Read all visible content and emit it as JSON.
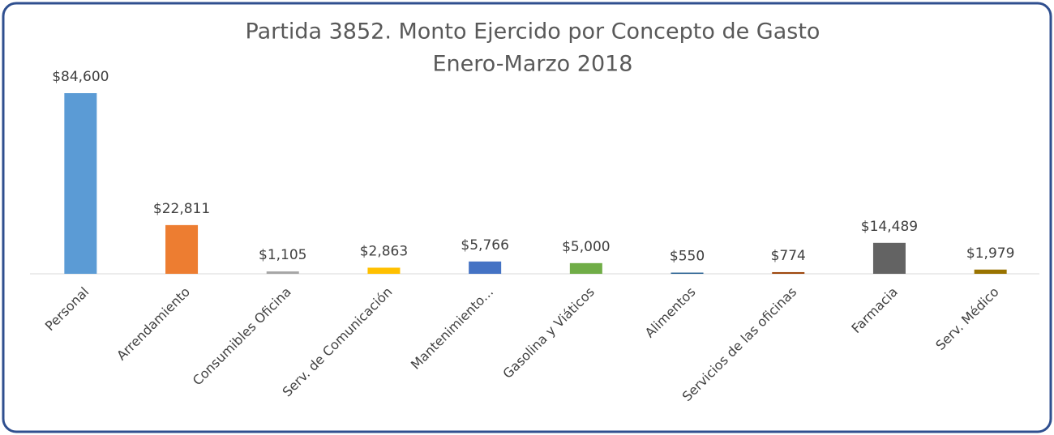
{
  "chart_data": {
    "type": "bar",
    "title": "Partida 3852. Monto Ejercido por Concepto de Gasto",
    "subtitle": "Enero-Marzo 2018",
    "categories": [
      "Personal",
      "Arrendamiento",
      "Consumibles Oficina",
      "Serv. de Comunicación",
      "Mantenimiento...",
      "Gasolina y Viáticos",
      "Alimentos",
      "Servicios de las oficinas",
      "Farmacia",
      "Serv. Médico"
    ],
    "values": [
      84600,
      22811,
      1105,
      2863,
      5766,
      5000,
      550,
      774,
      14489,
      1979
    ],
    "value_labels": [
      "$84,600",
      "$22,811",
      "$1,105",
      "$2,863",
      "$5,766",
      "$5,000",
      "$550",
      "$774",
      "$14,489",
      "$1,979"
    ],
    "colors": [
      "#5b9bd5",
      "#ed7d31",
      "#a5a5a5",
      "#ffc000",
      "#4472c4",
      "#70ad47",
      "#255e91",
      "#9e480e",
      "#636363",
      "#997300"
    ]
  }
}
